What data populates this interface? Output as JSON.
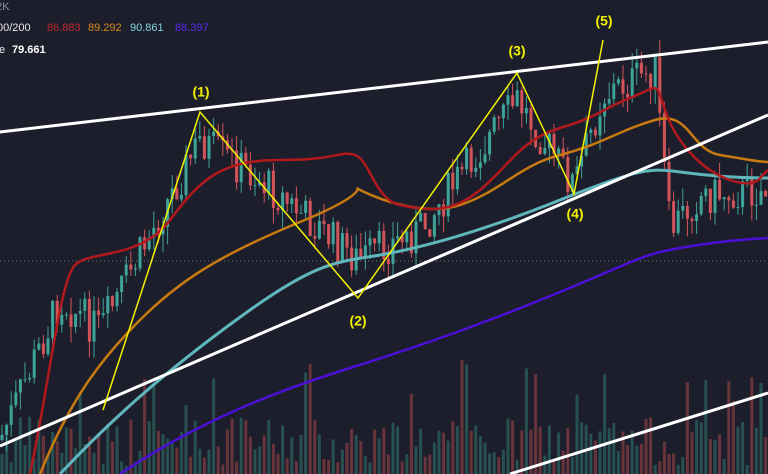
{
  "header": {
    "volume_label": "2K",
    "ma_label": "00/200",
    "ma_values": [
      86.883,
      89.292,
      90.861,
      88.397
    ],
    "price_label": "e",
    "price_value": 79.661
  },
  "waves": [
    "(1)",
    "(2)",
    "(3)",
    "(4)",
    "(5)"
  ]
}
